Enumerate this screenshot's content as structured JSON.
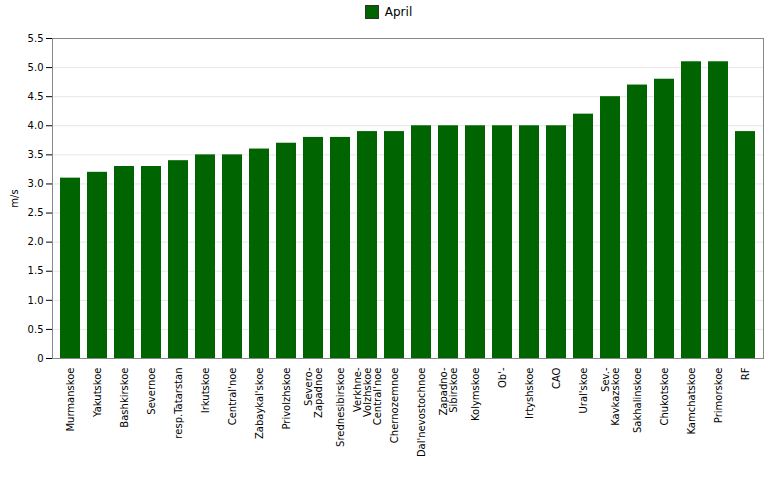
{
  "chart_data": {
    "type": "bar",
    "categories": [
      "Murmanskoe",
      "Yakutskoe",
      "Bashkirskoe",
      "Severnoe",
      "resp.Tatarstan",
      "Irkutskoe",
      "Central'noe",
      "Zabaykal'skoe",
      "Privolzhskoe",
      "Severo-\nZapadnoe",
      "Srednesibirskoe",
      "Verkhne-\nVolzhskoe\nCentral'noe",
      "Chernozemnoe",
      "Dal'nevostochnoe",
      "Zapadno-\nSibirskoe",
      "Kolymskoe",
      "Ob'-",
      "Irtyshskoe",
      "CAO",
      "Ural'skoe",
      "Sev.-\nKavkazskoe",
      "Sakhalinskoe",
      "Chukotskoe",
      "Kamchatskoe",
      "Primorskoe",
      "RF"
    ],
    "series": [
      {
        "name": "April",
        "color": "#006400",
        "values": [
          3.1,
          3.2,
          3.3,
          3.3,
          3.4,
          3.5,
          3.5,
          3.6,
          3.7,
          3.8,
          3.8,
          3.9,
          3.9,
          4.0,
          4.0,
          4.0,
          4.0,
          4.0,
          4.0,
          4.2,
          4.5,
          4.7,
          4.8,
          5.1,
          5.1,
          3.9
        ]
      }
    ],
    "ylabel": "m/s",
    "ylim": [
      0,
      5.5
    ],
    "yticks": [
      0,
      0.5,
      {
        "value": 1.0,
        "label": "1.0"
      },
      1.5,
      {
        "value": 2.0,
        "label": "2.0"
      },
      2.5,
      {
        "value": 3.0,
        "label": "3.0"
      },
      3.5,
      {
        "value": 4.0,
        "label": "4.0"
      },
      4.5,
      {
        "value": 5.0,
        "label": "5.0"
      },
      5.5
    ],
    "grid": true,
    "legend": "top"
  }
}
